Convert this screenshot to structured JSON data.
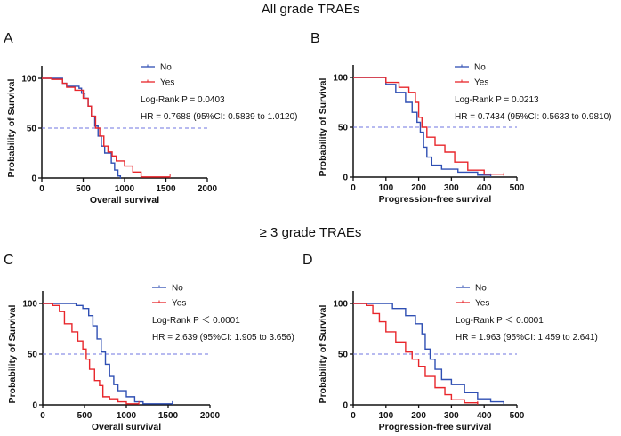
{
  "section_titles": [
    "All grade TRAEs",
    "≥ 3 grade TRAEs"
  ],
  "colors": {
    "No": "#2f4fb3",
    "Yes": "#e8262b",
    "median_line": "#6f74e0"
  },
  "chart_data": [
    {
      "type": "line",
      "panel": "A",
      "xlabel": "Overall survival",
      "ylabel": "Probability of Survival",
      "xlim": [
        0,
        2000
      ],
      "ylim": [
        0,
        100
      ],
      "xticks": [
        "0",
        "500",
        "1000",
        "1500",
        "2000"
      ],
      "yticks": [
        "0",
        "50",
        "100"
      ],
      "xtick_values": [
        0,
        500,
        1000,
        1500,
        2000
      ],
      "ytick_values": [
        0,
        50,
        100
      ],
      "reference_line": 50,
      "legend": [
        "No",
        "Yes"
      ],
      "logrank": "Log-Rank P = 0.0403",
      "hr": "HR = 0.7688 (95%CI: 0.5839 to 1.0120)",
      "series": [
        {
          "name": "No",
          "points": [
            [
              0,
              100
            ],
            [
              200,
              100
            ],
            [
              250,
              95
            ],
            [
              300,
              92
            ],
            [
              450,
              90
            ],
            [
              480,
              85
            ],
            [
              520,
              80
            ],
            [
              560,
              72
            ],
            [
              600,
              62
            ],
            [
              640,
              52
            ],
            [
              680,
              42
            ],
            [
              720,
              32
            ],
            [
              760,
              25
            ],
            [
              800,
              25
            ],
            [
              840,
              15
            ],
            [
              880,
              8
            ],
            [
              920,
              2
            ],
            [
              950,
              0
            ]
          ]
        },
        {
          "name": "Yes",
          "points": [
            [
              0,
              100
            ],
            [
              120,
              99
            ],
            [
              250,
              95
            ],
            [
              300,
              91
            ],
            [
              400,
              88
            ],
            [
              500,
              80
            ],
            [
              560,
              72
            ],
            [
              600,
              62
            ],
            [
              650,
              50
            ],
            [
              700,
              42
            ],
            [
              750,
              32
            ],
            [
              800,
              26
            ],
            [
              850,
              22
            ],
            [
              900,
              17
            ],
            [
              1000,
              12
            ],
            [
              1100,
              6
            ],
            [
              1200,
              1
            ],
            [
              1550,
              1
            ]
          ]
        }
      ]
    },
    {
      "type": "line",
      "panel": "B",
      "xlabel": "Progression-free survival",
      "ylabel": "Probability of Survival",
      "xlim": [
        0,
        500
      ],
      "ylim": [
        0,
        100
      ],
      "xticks": [
        "0",
        "100",
        "200",
        "300",
        "400",
        "500"
      ],
      "yticks": [
        "0",
        "50",
        "100"
      ],
      "xtick_values": [
        0,
        100,
        200,
        300,
        400,
        500
      ],
      "ytick_values": [
        0,
        50,
        100
      ],
      "reference_line": 50,
      "legend": [
        "No",
        "Yes"
      ],
      "logrank": "Log-Rank P = 0.0213",
      "hr": "HR = 0.7434 (95%CI: 0.5633 to 0.9810)",
      "series": [
        {
          "name": "No",
          "points": [
            [
              0,
              100
            ],
            [
              60,
              100
            ],
            [
              100,
              93
            ],
            [
              130,
              85
            ],
            [
              160,
              75
            ],
            [
              180,
              65
            ],
            [
              195,
              55
            ],
            [
              205,
              45
            ],
            [
              215,
              30
            ],
            [
              225,
              20
            ],
            [
              240,
              12
            ],
            [
              270,
              8
            ],
            [
              320,
              5
            ],
            [
              380,
              2
            ],
            [
              420,
              1
            ]
          ]
        },
        {
          "name": "Yes",
          "points": [
            [
              0,
              100
            ],
            [
              60,
              100
            ],
            [
              100,
              95
            ],
            [
              140,
              90
            ],
            [
              170,
              85
            ],
            [
              190,
              75
            ],
            [
              200,
              60
            ],
            [
              210,
              50
            ],
            [
              225,
              40
            ],
            [
              250,
              32
            ],
            [
              280,
              25
            ],
            [
              310,
              15
            ],
            [
              350,
              7
            ],
            [
              400,
              3
            ],
            [
              460,
              2
            ]
          ]
        }
      ]
    },
    {
      "type": "line",
      "panel": "C",
      "xlabel": "Overall survival",
      "ylabel": "Probability of Survival",
      "xlim": [
        0,
        2000
      ],
      "ylim": [
        0,
        100
      ],
      "xticks": [
        "0",
        "500",
        "1000",
        "1500",
        "2000"
      ],
      "yticks": [
        "0",
        "50",
        "100"
      ],
      "xtick_values": [
        0,
        500,
        1000,
        1500,
        2000
      ],
      "ytick_values": [
        0,
        50,
        100
      ],
      "reference_line": 50,
      "legend": [
        "No",
        "Yes"
      ],
      "logrank": "Log-Rank P ＜ 0.0001",
      "hr": "HR = 2.639 (95%CI: 1.905 to 3.656)",
      "series": [
        {
          "name": "No",
          "points": [
            [
              0,
              100
            ],
            [
              200,
              100
            ],
            [
              400,
              98
            ],
            [
              480,
              95
            ],
            [
              550,
              88
            ],
            [
              600,
              78
            ],
            [
              650,
              65
            ],
            [
              700,
              52
            ],
            [
              750,
              40
            ],
            [
              800,
              28
            ],
            [
              850,
              20
            ],
            [
              900,
              14
            ],
            [
              1000,
              8
            ],
            [
              1100,
              3
            ],
            [
              1200,
              1
            ],
            [
              1550,
              1
            ]
          ]
        },
        {
          "name": "Yes",
          "points": [
            [
              0,
              100
            ],
            [
              120,
              98
            ],
            [
              200,
              92
            ],
            [
              260,
              80
            ],
            [
              350,
              72
            ],
            [
              420,
              63
            ],
            [
              480,
              55
            ],
            [
              520,
              45
            ],
            [
              560,
              35
            ],
            [
              620,
              24
            ],
            [
              680,
              19
            ],
            [
              720,
              8
            ],
            [
              800,
              6
            ],
            [
              900,
              3
            ],
            [
              1000,
              1
            ],
            [
              1150,
              1
            ]
          ]
        }
      ]
    },
    {
      "type": "line",
      "panel": "D",
      "xlabel": "Progression-free survival",
      "ylabel": "Probability of Survival",
      "xlim": [
        0,
        500
      ],
      "ylim": [
        0,
        100
      ],
      "xticks": [
        "0",
        "100",
        "200",
        "300",
        "400",
        "500"
      ],
      "yticks": [
        "0",
        "50",
        "100"
      ],
      "xtick_values": [
        0,
        100,
        200,
        300,
        400,
        500
      ],
      "ytick_values": [
        0,
        50,
        100
      ],
      "reference_line": 50,
      "legend": [
        "No",
        "Yes"
      ],
      "logrank": "Log-Rank P ＜ 0.0001",
      "hr": "HR = 1.963 (95%CI: 1.459 to 2.641)",
      "series": [
        {
          "name": "No",
          "points": [
            [
              0,
              100
            ],
            [
              80,
              100
            ],
            [
              120,
              95
            ],
            [
              160,
              88
            ],
            [
              190,
              80
            ],
            [
              210,
              70
            ],
            [
              220,
              55
            ],
            [
              235,
              45
            ],
            [
              250,
              35
            ],
            [
              270,
              25
            ],
            [
              300,
              20
            ],
            [
              340,
              12
            ],
            [
              380,
              6
            ],
            [
              420,
              3
            ],
            [
              460,
              1
            ]
          ]
        },
        {
          "name": "Yes",
          "points": [
            [
              0,
              100
            ],
            [
              40,
              98
            ],
            [
              60,
              90
            ],
            [
              80,
              82
            ],
            [
              100,
              72
            ],
            [
              130,
              62
            ],
            [
              160,
              52
            ],
            [
              180,
              45
            ],
            [
              200,
              38
            ],
            [
              220,
              28
            ],
            [
              250,
              17
            ],
            [
              280,
              10
            ],
            [
              300,
              5
            ],
            [
              340,
              2
            ],
            [
              380,
              1
            ]
          ]
        }
      ]
    }
  ]
}
